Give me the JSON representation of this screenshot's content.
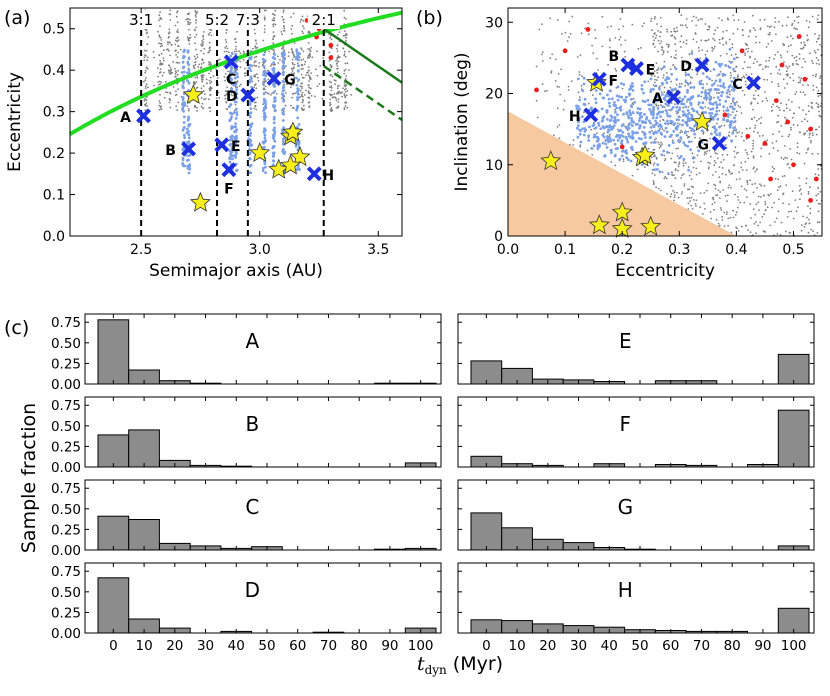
{
  "figure": {
    "panel_labels": [
      "(a)",
      "(b)",
      "(c)"
    ],
    "shared_xlabel_hist": "t",
    "shared_xlabel_sub": "dyn",
    "shared_xlabel_unit": "(Myr)",
    "shared_ylabel_hist": "Sample fraction"
  },
  "colors": {
    "background_points": "#7f7f7f",
    "blue_points": "#7aa0e8",
    "red_points": "#ee1c1c",
    "markers": "#1e2fe0",
    "stars": "#f7ee1c",
    "green": "#22dd22",
    "dark_green": "#1a7a1a",
    "bars": "#8c8c8c",
    "shaded_region": "#f7c9a0"
  },
  "chart_data": [
    {
      "type": "scatter",
      "panel": "(a)",
      "xlabel": "Semimajor axis (AU)",
      "ylabel": "Eccentricity",
      "xlim": [
        2.2,
        3.6
      ],
      "ylim": [
        0.0,
        0.55
      ],
      "xticks": [
        "2.5",
        "3.0",
        "3.5"
      ],
      "yticks": [
        "0.0",
        "0.1",
        "0.2",
        "0.3",
        "0.4",
        "0.5"
      ],
      "resonances": [
        {
          "label": "3:1",
          "a": 2.5
        },
        {
          "label": "5:2",
          "a": 2.82
        },
        {
          "label": "7:3",
          "a": 2.95
        },
        {
          "label": "2:1",
          "a": 3.27
        }
      ],
      "marked_objects": [
        {
          "label": "A",
          "a": 2.51,
          "e": 0.29
        },
        {
          "label": "B",
          "a": 2.7,
          "e": 0.21
        },
        {
          "label": "C",
          "a": 2.88,
          "e": 0.42
        },
        {
          "label": "D",
          "a": 2.95,
          "e": 0.34
        },
        {
          "label": "E",
          "a": 2.84,
          "e": 0.22
        },
        {
          "label": "F",
          "a": 2.87,
          "e": 0.16
        },
        {
          "label": "G",
          "a": 3.06,
          "e": 0.38
        },
        {
          "label": "H",
          "a": 3.23,
          "e": 0.15
        }
      ],
      "stars": [
        {
          "a": 2.72,
          "e": 0.34
        },
        {
          "a": 2.75,
          "e": 0.08
        },
        {
          "a": 3.0,
          "e": 0.2
        },
        {
          "a": 3.13,
          "e": 0.24
        },
        {
          "a": 3.14,
          "e": 0.25
        },
        {
          "a": 3.17,
          "e": 0.19
        },
        {
          "a": 3.08,
          "e": 0.16
        },
        {
          "a": 3.13,
          "e": 0.17
        }
      ]
    },
    {
      "type": "scatter",
      "panel": "(b)",
      "xlabel": "Eccentricity",
      "ylabel": "Inclination (deg)",
      "xlim": [
        0.0,
        0.55
      ],
      "ylim": [
        0,
        32
      ],
      "xticks": [
        "0.0",
        "0.1",
        "0.2",
        "0.3",
        "0.4",
        "0.5"
      ],
      "yticks": [
        "0",
        "10",
        "20",
        "30"
      ],
      "shaded_region_boundary": [
        [
          0.0,
          17.5
        ],
        [
          0.4,
          0.0
        ]
      ],
      "marked_objects": [
        {
          "label": "A",
          "e": 0.29,
          "i": 19.5
        },
        {
          "label": "B",
          "e": 0.21,
          "i": 24.0
        },
        {
          "label": "C",
          "e": 0.43,
          "i": 21.5
        },
        {
          "label": "D",
          "e": 0.34,
          "i": 24.0
        },
        {
          "label": "E",
          "e": 0.225,
          "i": 23.5
        },
        {
          "label": "F",
          "e": 0.16,
          "i": 22.0
        },
        {
          "label": "G",
          "e": 0.37,
          "i": 13.0
        },
        {
          "label": "H",
          "e": 0.145,
          "i": 17.0
        }
      ],
      "stars": [
        {
          "e": 0.075,
          "i": 10.5
        },
        {
          "e": 0.155,
          "i": 21.5
        },
        {
          "e": 0.235,
          "i": 11.0
        },
        {
          "e": 0.24,
          "i": 11.3
        },
        {
          "e": 0.34,
          "i": 16.0
        },
        {
          "e": 0.16,
          "i": 1.5
        },
        {
          "e": 0.2,
          "i": 3.3
        },
        {
          "e": 0.2,
          "i": 1.0
        },
        {
          "e": 0.25,
          "i": 1.3
        }
      ]
    },
    {
      "type": "bar",
      "panel": "(c)",
      "categories": [
        "0",
        "10",
        "20",
        "30",
        "40",
        "50",
        "60",
        "70",
        "80",
        "90",
        "100"
      ],
      "ylim": [
        0,
        0.85
      ],
      "yticks": [
        "0.00",
        "0.25",
        "0.50",
        "0.75"
      ],
      "series": [
        {
          "name": "A",
          "values": [
            0.78,
            0.17,
            0.04,
            0.01,
            0.0,
            0.0,
            0.0,
            0.0,
            0.0,
            0.01,
            0.01
          ]
        },
        {
          "name": "B",
          "values": [
            0.39,
            0.45,
            0.08,
            0.02,
            0.01,
            0.0,
            0.0,
            0.0,
            0.0,
            0.0,
            0.05
          ]
        },
        {
          "name": "C",
          "values": [
            0.41,
            0.37,
            0.08,
            0.05,
            0.02,
            0.04,
            0.0,
            0.0,
            0.0,
            0.01,
            0.02
          ]
        },
        {
          "name": "D",
          "values": [
            0.67,
            0.17,
            0.06,
            0.0,
            0.02,
            0.0,
            0.0,
            0.01,
            0.0,
            0.0,
            0.06
          ]
        },
        {
          "name": "E",
          "values": [
            0.28,
            0.19,
            0.06,
            0.05,
            0.03,
            0.0,
            0.04,
            0.04,
            0.0,
            0.0,
            0.36
          ]
        },
        {
          "name": "F",
          "values": [
            0.13,
            0.04,
            0.02,
            0.0,
            0.04,
            0.0,
            0.03,
            0.02,
            0.0,
            0.03,
            0.69
          ]
        },
        {
          "name": "G",
          "values": [
            0.45,
            0.27,
            0.13,
            0.09,
            0.03,
            0.01,
            0.0,
            0.0,
            0.0,
            0.0,
            0.05
          ]
        },
        {
          "name": "H",
          "values": [
            0.16,
            0.15,
            0.11,
            0.09,
            0.07,
            0.04,
            0.03,
            0.02,
            0.02,
            0.0,
            0.3
          ]
        }
      ]
    }
  ]
}
